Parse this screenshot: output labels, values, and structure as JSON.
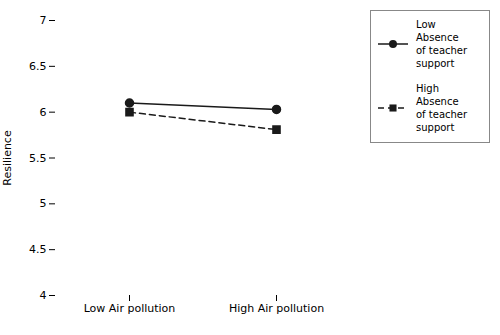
{
  "chart_data": {
    "type": "line",
    "categories": [
      "Low Air pollution",
      "High Air pollution"
    ],
    "series": [
      {
        "name": "Low\nAbsence\nof teacher\nsupport",
        "color": "#1a1a1a",
        "values": [
          6.1,
          6.03
        ],
        "marker": "circle",
        "line_style": "solid"
      },
      {
        "name": "High\nAbsence\nof teacher\nsupport",
        "color": "#1a1a1a",
        "values": [
          6.0,
          5.81
        ],
        "marker": "square",
        "line_style": "dashed"
      }
    ],
    "ylabel": "Resilience",
    "ylim": [
      4,
      7
    ],
    "yticks": [
      4,
      4.5,
      5,
      5.5,
      6,
      6.5,
      7
    ],
    "grid": false,
    "legend": "right"
  }
}
